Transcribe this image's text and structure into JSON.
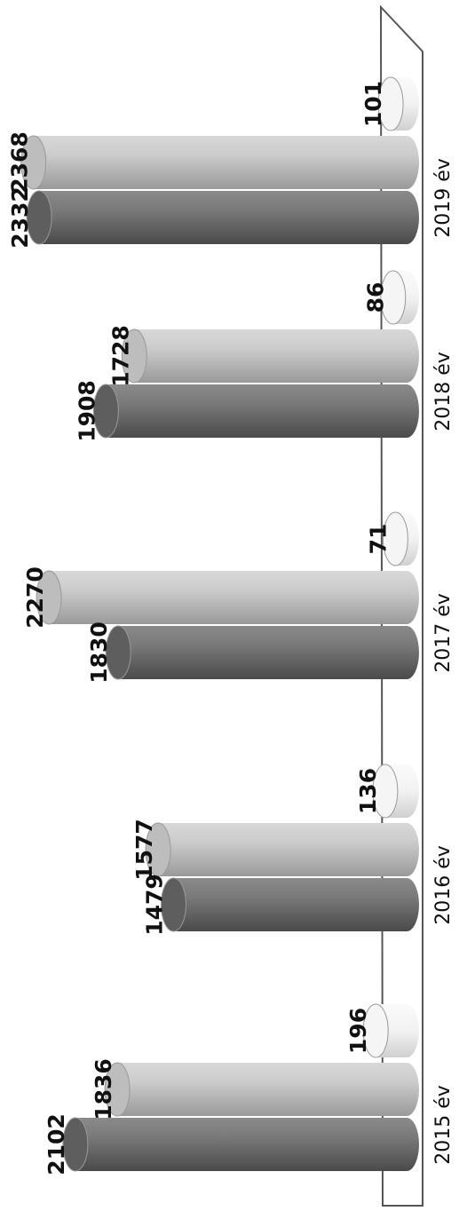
{
  "chart_data": {
    "type": "bar",
    "orientation": "horizontal",
    "style": "3d-cylinder",
    "rotation": "rotated 90 degrees counter-clockwise",
    "categories": [
      "2015 év",
      "2016 év",
      "2017 év",
      "2018 év",
      "2019 év"
    ],
    "series": [
      {
        "values": [
          2102,
          1479,
          1830,
          1908,
          2332
        ],
        "color": "#6e6e6e"
      },
      {
        "values": [
          1836,
          1577,
          2270,
          1728,
          2368
        ],
        "color": "#c2c2c2"
      },
      {
        "values": [
          196,
          136,
          71,
          86,
          101
        ],
        "color": "#f0f0f0"
      }
    ],
    "xlim": [
      0,
      2400
    ],
    "grid": false,
    "legend": "none",
    "title": "",
    "xlabel": "",
    "ylabel": ""
  }
}
